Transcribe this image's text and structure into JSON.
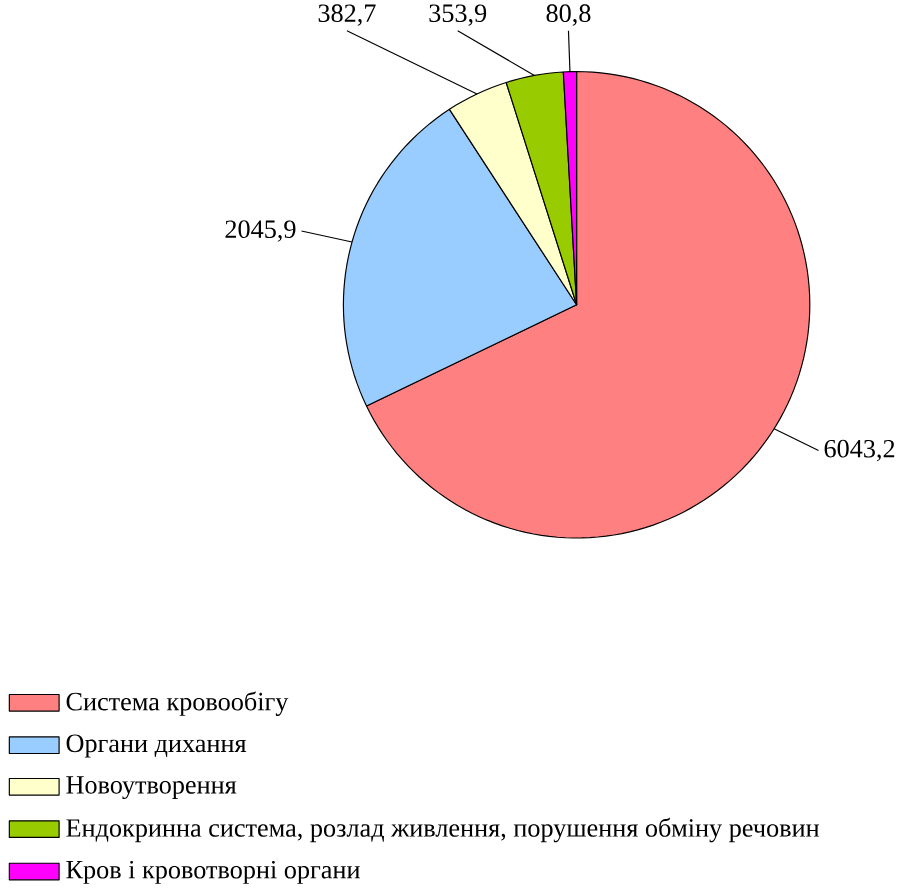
{
  "chart_data": {
    "type": "pie",
    "categories": [
      "Система кровообігу",
      "Органи дихання",
      "Новоутворення",
      "Ендокринна система, розлад живлення, порушення обміну речовин",
      "Кров і кровотворні органи"
    ],
    "values": [
      6043.2,
      2045.9,
      382.7,
      353.9,
      80.8
    ],
    "value_labels": [
      "6043,2",
      "2045,9",
      "382,7",
      "353,9",
      "80,8"
    ],
    "colors": [
      "#ff8080",
      "#99ccff",
      "#ffffcc",
      "#99cc00",
      "#ff00ff"
    ],
    "legend": "bottom left"
  }
}
